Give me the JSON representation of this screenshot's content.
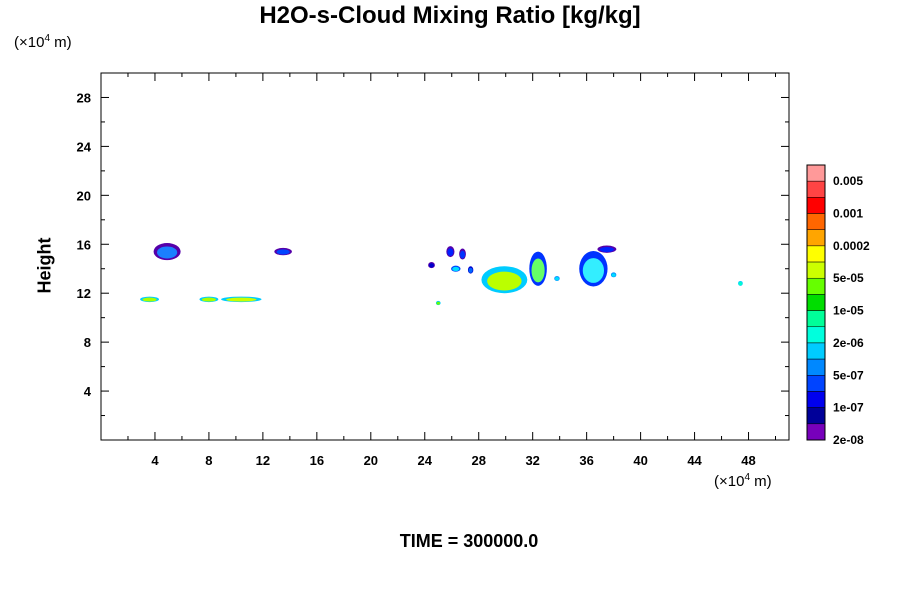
{
  "chart_data": {
    "type": "heatmap",
    "title": "H2O-s-Cloud Mixing Ratio [kg/kg]",
    "ylabel": "Height",
    "x_unit": {
      "prefix": "(×10",
      "exp": "4",
      "suffix": " m)"
    },
    "y_unit": {
      "prefix": "(×10",
      "exp": "4",
      "suffix": " m)"
    },
    "xlim": [
      0,
      51
    ],
    "ylim": [
      0,
      30
    ],
    "x_ticks": [
      "4",
      "8",
      "12",
      "16",
      "20",
      "24",
      "28",
      "32",
      "36",
      "40",
      "44",
      "48"
    ],
    "x_tick_values": [
      4,
      8,
      12,
      16,
      20,
      24,
      28,
      32,
      36,
      40,
      44,
      48
    ],
    "y_ticks": [
      "4",
      "8",
      "12",
      "16",
      "20",
      "24",
      "28"
    ],
    "y_tick_values": [
      4,
      8,
      12,
      16,
      20,
      24,
      28
    ],
    "colorbar": {
      "labels": [
        "0.005",
        "0.001",
        "0.0002",
        "5e-05",
        "1e-05",
        "2e-06",
        "5e-07",
        "1e-07",
        "2e-08"
      ],
      "colors": [
        "#ff9999",
        "#ff4444",
        "#ff0000",
        "#ff6600",
        "#ffa500",
        "#ffff00",
        "#ccff00",
        "#66ff00",
        "#00dd00",
        "#00ff99",
        "#00ffdd",
        "#00ccff",
        "#0088ff",
        "#0044ff",
        "#0000ee",
        "#000099",
        "#7700bb"
      ]
    },
    "clouds": [
      {
        "x": 4.9,
        "y": 15.4,
        "w": 2.0,
        "h": 1.4,
        "core": "#1a7fff",
        "edge": "#5500aa"
      },
      {
        "x": 13.5,
        "y": 15.4,
        "w": 1.3,
        "h": 0.6,
        "core": "#0044ff",
        "edge": "#5500aa"
      },
      {
        "x": 3.6,
        "y": 11.5,
        "w": 1.4,
        "h": 0.45,
        "core": "#aaff00",
        "edge": "#00ccff"
      },
      {
        "x": 8.0,
        "y": 11.5,
        "w": 1.4,
        "h": 0.45,
        "core": "#aaff00",
        "edge": "#00ccff"
      },
      {
        "x": 10.4,
        "y": 11.5,
        "w": 3.0,
        "h": 0.45,
        "core": "#ccff00",
        "edge": "#00ccff"
      },
      {
        "x": 25.9,
        "y": 15.4,
        "w": 0.6,
        "h": 0.9,
        "core": "#0022ff",
        "edge": "#5500aa"
      },
      {
        "x": 26.8,
        "y": 15.2,
        "w": 0.5,
        "h": 0.9,
        "core": "#0033ff",
        "edge": "#5500aa"
      },
      {
        "x": 24.5,
        "y": 14.3,
        "w": 0.5,
        "h": 0.5,
        "core": "#0000cc",
        "edge": "#5500aa"
      },
      {
        "x": 26.3,
        "y": 14.0,
        "w": 0.7,
        "h": 0.5,
        "core": "#00ddff",
        "edge": "#0044ff"
      },
      {
        "x": 27.4,
        "y": 13.9,
        "w": 0.4,
        "h": 0.6,
        "core": "#0066ff",
        "edge": "#0000cc"
      },
      {
        "x": 29.9,
        "y": 13.1,
        "w": 3.4,
        "h": 2.2,
        "core": "#bbff00",
        "edge": "#00ccff"
      },
      {
        "x": 32.4,
        "y": 14.0,
        "w": 1.3,
        "h": 2.8,
        "core": "#66ff66",
        "edge": "#0033ff"
      },
      {
        "x": 36.5,
        "y": 14.0,
        "w": 2.1,
        "h": 2.9,
        "core": "#33eeff",
        "edge": "#0033ff"
      },
      {
        "x": 37.5,
        "y": 15.6,
        "w": 1.4,
        "h": 0.6,
        "core": "#0022ff",
        "edge": "#5500aa"
      },
      {
        "x": 33.8,
        "y": 13.2,
        "w": 0.4,
        "h": 0.4,
        "core": "#00ddff",
        "edge": "#0088ff"
      },
      {
        "x": 38.0,
        "y": 13.5,
        "w": 0.4,
        "h": 0.4,
        "core": "#00ddff",
        "edge": "#0088ff"
      },
      {
        "x": 25.0,
        "y": 11.2,
        "w": 0.35,
        "h": 0.35,
        "core": "#66ff00",
        "edge": "#00ccff"
      },
      {
        "x": 47.4,
        "y": 12.8,
        "w": 0.35,
        "h": 0.4,
        "core": "#00ffcc",
        "edge": "#00ccff"
      }
    ]
  },
  "time": {
    "label": "TIME = ",
    "value": "300000.0"
  }
}
